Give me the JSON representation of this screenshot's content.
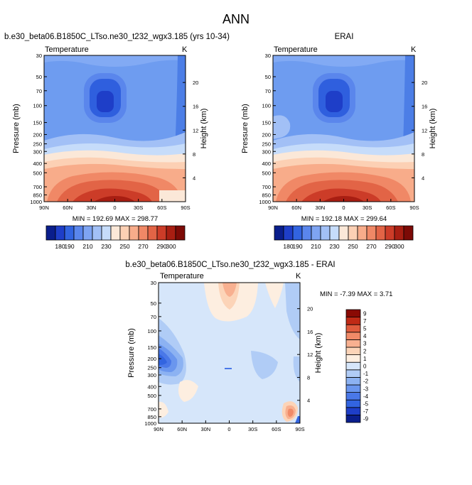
{
  "figure_title": "ANN",
  "panels": {
    "model": {
      "title": "b.e30_beta06.B1850C_LTso.ne30_t232_wgx3.185 (yrs 10-34)",
      "var_label": "Temperature",
      "units": "K",
      "stats": "MIN = 192.69   MAX = 298.77"
    },
    "obs": {
      "title": "ERAI",
      "var_label": "Temperature",
      "units": "K",
      "stats": "MIN = 192.18   MAX = 299.64"
    },
    "diff": {
      "title": "b.e30_beta06.B1850C_LTso.ne30_t232_wgx3.185 - ERAI",
      "var_label": "Temperature",
      "units": "K",
      "stats": "MIN =  -7.39   MAX =   3.71"
    }
  },
  "axes": {
    "ylabel": "Pressure (mb)",
    "ylabel_right": "Height (km)",
    "x_ticks": [
      "90N",
      "60N",
      "30N",
      "0",
      "30S",
      "60S",
      "90S"
    ],
    "p_ticks": [
      "30",
      "50",
      "70",
      "100",
      "150",
      "200",
      "250",
      "300",
      "400",
      "500",
      "700",
      "850",
      "1000"
    ],
    "h_ticks": [
      "20",
      "16",
      "12",
      "8",
      "4"
    ]
  },
  "colorbar_abs": {
    "colors": [
      "#0a1e8c",
      "#1e3ec8",
      "#3264e0",
      "#5a86ec",
      "#7ea4f2",
      "#a2c0f6",
      "#c6dcfa",
      "#fbe8d8",
      "#fcd0b4",
      "#f8ac8a",
      "#f08866",
      "#e26446",
      "#cc3c28",
      "#a81e12",
      "#7c0a06"
    ],
    "labels": [
      "180",
      "190",
      "210",
      "230",
      "250",
      "270",
      "290",
      "300"
    ]
  },
  "colorbar_diff": {
    "colors": [
      "#0a1e8c",
      "#1e3ec8",
      "#3264e0",
      "#4a78e8",
      "#6a96ee",
      "#8cb2f2",
      "#b0ccf6",
      "#d6e6fa",
      "#fdeee0",
      "#fcd4b8",
      "#f8b090",
      "#f08a68",
      "#e05c3e",
      "#c02a16",
      "#8a0a04"
    ],
    "labels": [
      "-9",
      "-7",
      "-5",
      "-4",
      "-3",
      "-2",
      "-1",
      "0",
      "1",
      "2",
      "3",
      "4",
      "5",
      "7",
      "9"
    ]
  },
  "chart_data": [
    {
      "type": "heatmap",
      "title": "b.e30_beta06.B1850C_LTso.ne30_t232_wgx3.185 (yrs 10-34)",
      "xlabel": "",
      "ylabel": "Pressure (mb)",
      "x": [
        "90N",
        "60N",
        "30N",
        "0",
        "30S",
        "60S",
        "90S"
      ],
      "y": [
        "30",
        "50",
        "70",
        "100",
        "150",
        "200",
        "250",
        "300",
        "400",
        "500",
        "700",
        "850",
        "1000"
      ],
      "min": 192.69,
      "max": 298.77,
      "units": "K"
    },
    {
      "type": "heatmap",
      "title": "ERAI",
      "xlabel": "",
      "ylabel": "Pressure (mb)",
      "x": [
        "90N",
        "60N",
        "30N",
        "0",
        "30S",
        "60S",
        "90S"
      ],
      "y": [
        "30",
        "50",
        "70",
        "100",
        "150",
        "200",
        "250",
        "300",
        "400",
        "500",
        "700",
        "850",
        "1000"
      ],
      "min": 192.18,
      "max": 299.64,
      "units": "K"
    },
    {
      "type": "heatmap",
      "title": "b.e30_beta06.B1850C_LTso.ne30_t232_wgx3.185 - ERAI",
      "xlabel": "",
      "ylabel": "Pressure (mb)",
      "x": [
        "90N",
        "60N",
        "30N",
        "0",
        "30S",
        "60S",
        "90S"
      ],
      "y": [
        "30",
        "50",
        "70",
        "100",
        "150",
        "200",
        "250",
        "300",
        "400",
        "500",
        "700",
        "850",
        "1000"
      ],
      "min": -7.39,
      "max": 3.71,
      "units": "K"
    }
  ]
}
